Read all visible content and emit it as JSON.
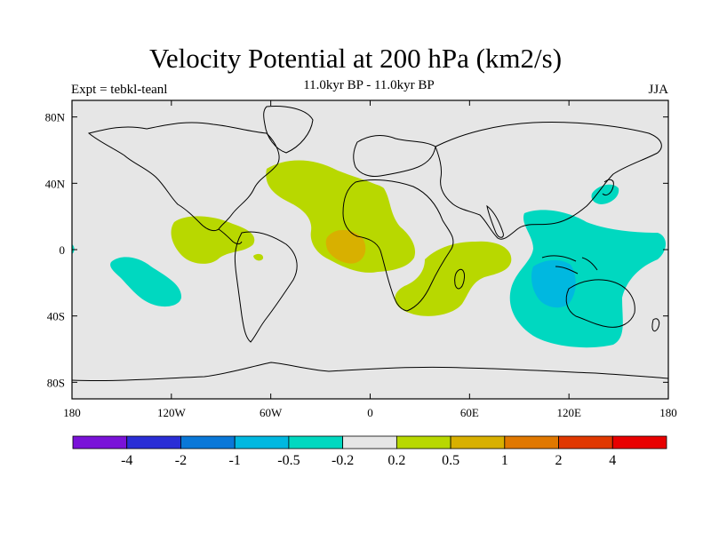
{
  "title": "Velocity Potential at 200 hPa (km2/s)",
  "subtitle": "11.0kyr BP - 11.0kyr BP",
  "left_label": "Expt = tebkl-teanl",
  "season": "JJA",
  "lat_ticks": [
    "80N",
    "40N",
    "0",
    "40S",
    "80S"
  ],
  "lon_ticks": [
    "180",
    "120W",
    "60W",
    "0",
    "60E",
    "120E",
    "180"
  ],
  "colorbar": {
    "labels": [
      "-4",
      "-2",
      "-1",
      "-0.5",
      "-0.2",
      "0.2",
      "0.5",
      "1",
      "2",
      "4"
    ],
    "colors": [
      "#7a12d8",
      "#2a2ed6",
      "#0a78d8",
      "#00b8e0",
      "#00d8c0",
      "#e6e6e6",
      "#b8d800",
      "#d8b000",
      "#e07800",
      "#e03800",
      "#e80000"
    ]
  },
  "colors": {
    "background_map": "#e6e6e6",
    "neg_light": "#00d8c0",
    "neg_mid": "#00b8e0",
    "pos_light": "#b8d800",
    "pos_mid": "#d8b000"
  }
}
